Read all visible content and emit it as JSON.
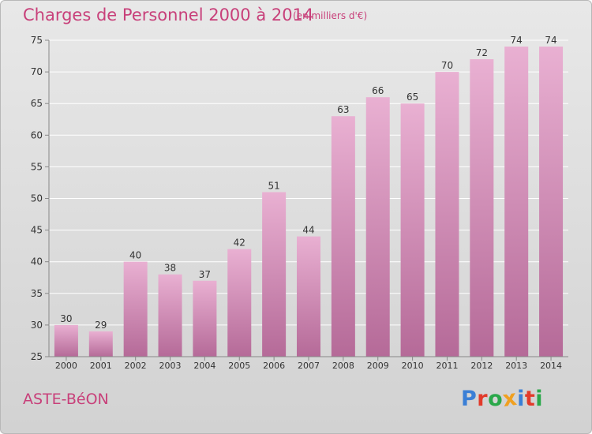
{
  "header": {
    "title": "Charges de Personnel 2000 à 2014",
    "unit_note": "(en milliers d'€)"
  },
  "footer": {
    "commune": "ASTE-BéON",
    "logo_text": "Proxiti",
    "logo_letter_colors": [
      "#3a7fd6",
      "#e23a2a",
      "#2aa84a",
      "#f0a020",
      "#3a7fd6",
      "#e23a2a",
      "#2aa84a"
    ]
  },
  "colors": {
    "title": "#c8407a",
    "bar_light": "#e9b0d2",
    "bar_dark": "#b56a98",
    "grid": "#ffffff",
    "axis_text": "#333333"
  },
  "chart_data": {
    "type": "bar",
    "categories": [
      "2000",
      "2001",
      "2002",
      "2003",
      "2004",
      "2005",
      "2006",
      "2007",
      "2008",
      "2009",
      "2010",
      "2011",
      "2012",
      "2013",
      "2014"
    ],
    "values": [
      30,
      29,
      40,
      38,
      37,
      42,
      51,
      44,
      63,
      66,
      65,
      70,
      72,
      74,
      74
    ],
    "title": "Charges de Personnel 2000 à 2014",
    "subtitle": "(en milliers d'€)",
    "xlabel": "",
    "ylabel": "",
    "ylim": [
      25,
      75
    ],
    "yticks": [
      25,
      30,
      35,
      40,
      45,
      50,
      55,
      60,
      65,
      70,
      75
    ],
    "grid": true,
    "data_labels": true
  }
}
